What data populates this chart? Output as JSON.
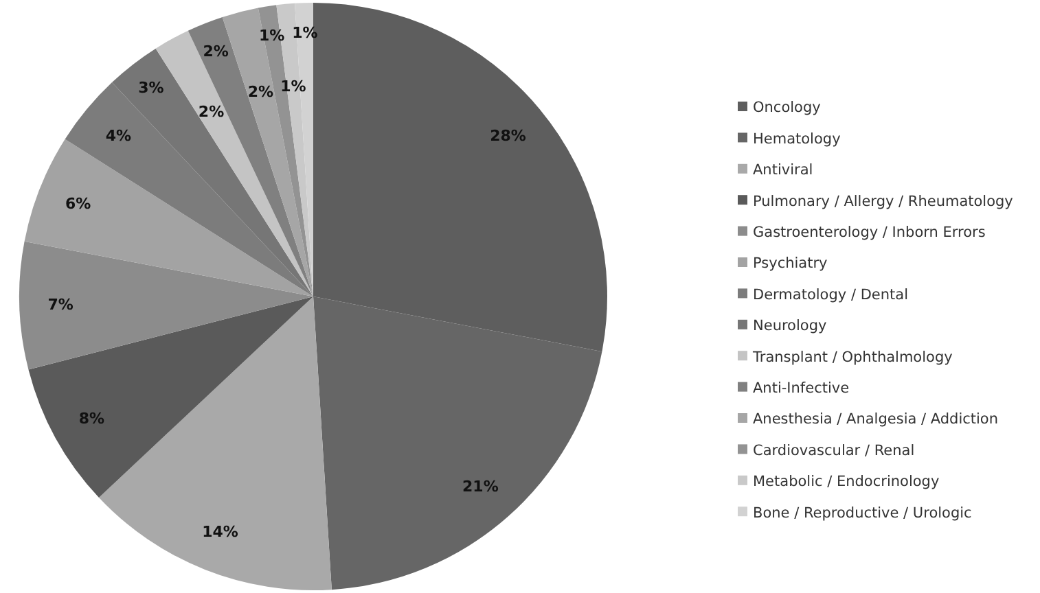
{
  "chart_data": {
    "type": "pie",
    "categories": [
      "Oncology",
      "Hematology",
      "Antiviral",
      "Pulmonary / Allergy / Rheumatology",
      "Gastroenterology / Inborn Errors",
      "Psychiatry",
      "Dermatology / Dental",
      "Neurology",
      "Transplant / Ophthalmology",
      "Anti-Infective",
      "Anesthesia / Analgesia / Addiction",
      "Cardiovascular / Renal",
      "Metabolic / Endocrinology",
      "Bone / Reproductive / Urologic"
    ],
    "values": [
      28,
      21,
      14,
      8,
      7,
      6,
      4,
      3,
      2,
      2,
      2,
      1,
      1,
      1
    ],
    "value_labels": [
      "28%",
      "21%",
      "14%",
      "8%",
      "7%",
      "6%",
      "4%",
      "3%",
      "2%",
      "2%",
      "2%",
      "1%",
      "1%",
      "1%"
    ],
    "colors": [
      "#5e5e5e",
      "#666666",
      "#a9a9a9",
      "#5a5a5a",
      "#8c8c8c",
      "#a3a3a3",
      "#7c7c7c",
      "#767676",
      "#c4c4c4",
      "#808080",
      "#a6a6a6",
      "#939393",
      "#c9c9c9",
      "#d2d2d2"
    ],
    "legend": "right"
  }
}
